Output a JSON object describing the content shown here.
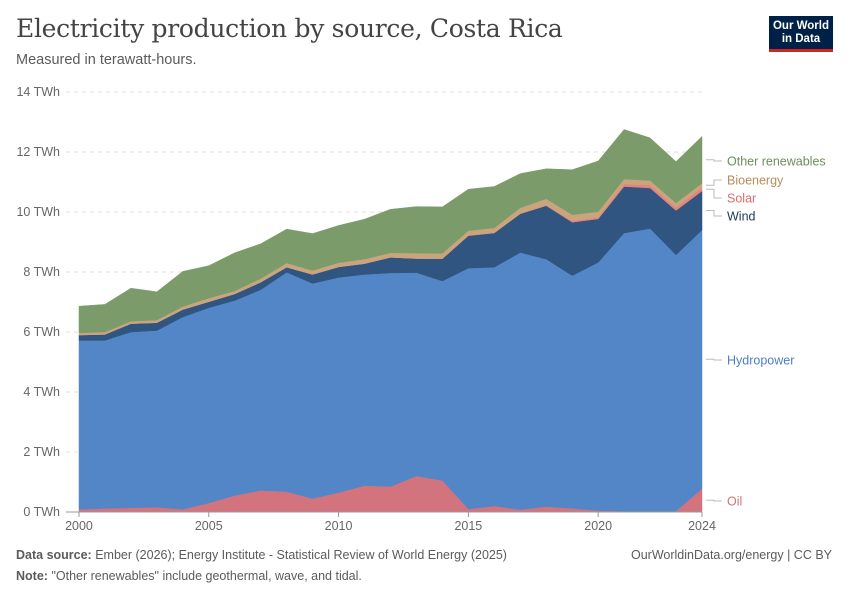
{
  "header": {
    "title": "Electricity production by source, Costa Rica",
    "subtitle": "Measured in terawatt-hours.",
    "logo_line1": "Our World",
    "logo_line2": "in Data"
  },
  "footer": {
    "source_label": "Data source:",
    "source_text": "Ember (2026); Energy Institute - Statistical Review of World Energy (2025)",
    "note_label": "Note:",
    "note_text": "\"Other renewables\" include geothermal, wave, and tidal.",
    "url": "OurWorldinData.org/energy | CC BY"
  },
  "chart_data": {
    "type": "area",
    "stacked": true,
    "title": "Electricity production by source, Costa Rica",
    "unit": "TWh",
    "ylim": [
      0,
      14
    ],
    "y_ticks": [
      0,
      2,
      4,
      6,
      8,
      10,
      12,
      14
    ],
    "y_tick_labels": [
      "0 TWh",
      "2 TWh",
      "4 TWh",
      "6 TWh",
      "8 TWh",
      "10 TWh",
      "12 TWh",
      "14 TWh"
    ],
    "x_ticks": [
      2000,
      2005,
      2010,
      2015,
      2020,
      2024
    ],
    "x_tick_labels": [
      "2000",
      "2005",
      "2010",
      "2015",
      "2020",
      "2024"
    ],
    "xlim": [
      1999.5,
      2024
    ],
    "grid": true,
    "legend_position": "right",
    "x": [
      2000,
      2001,
      2002,
      2003,
      2004,
      2005,
      2006,
      2007,
      2008,
      2009,
      2010,
      2011,
      2012,
      2013,
      2014,
      2015,
      2016,
      2017,
      2018,
      2019,
      2020,
      2021,
      2022,
      2023,
      2024
    ],
    "series": [
      {
        "name": "Oil",
        "color": "#d2737e",
        "values": [
          0.09,
          0.12,
          0.14,
          0.16,
          0.09,
          0.3,
          0.55,
          0.72,
          0.68,
          0.45,
          0.65,
          0.88,
          0.85,
          1.2,
          1.05,
          0.1,
          0.2,
          0.08,
          0.18,
          0.12,
          0.05,
          0.03,
          0.03,
          0.03,
          0.78
        ]
      },
      {
        "name": "Hydropower",
        "color": "#5386c6",
        "values": [
          5.63,
          5.6,
          5.86,
          5.89,
          6.41,
          6.51,
          6.5,
          6.69,
          7.31,
          7.17,
          7.17,
          7.04,
          7.12,
          6.78,
          6.65,
          8.03,
          7.96,
          8.57,
          8.25,
          7.76,
          8.27,
          9.27,
          9.42,
          8.54,
          8.62
        ]
      },
      {
        "name": "Wind",
        "color": "#2f5580",
        "values": [
          0.18,
          0.2,
          0.28,
          0.26,
          0.25,
          0.2,
          0.22,
          0.25,
          0.17,
          0.3,
          0.35,
          0.36,
          0.52,
          0.47,
          0.74,
          1.08,
          1.14,
          1.29,
          1.78,
          1.78,
          1.45,
          1.55,
          1.35,
          1.48,
          1.3
        ]
      },
      {
        "name": "Solar",
        "color": "#e48381",
        "values": [
          0,
          0,
          0,
          0,
          0,
          0,
          0,
          0,
          0,
          0,
          0,
          0,
          0,
          0,
          0.01,
          0.01,
          0.01,
          0.01,
          0.02,
          0.05,
          0.05,
          0.08,
          0.1,
          0.1,
          0.12
        ]
      },
      {
        "name": "Bioenergy",
        "color": "#c9a57e",
        "values": [
          0.07,
          0.08,
          0.08,
          0.09,
          0.1,
          0.12,
          0.1,
          0.12,
          0.14,
          0.13,
          0.14,
          0.15,
          0.15,
          0.18,
          0.17,
          0.16,
          0.16,
          0.19,
          0.21,
          0.2,
          0.19,
          0.17,
          0.15,
          0.15,
          0.14
        ]
      },
      {
        "name": "Other renewables",
        "color": "#7c9b6b",
        "values": [
          0.89,
          0.92,
          1.1,
          0.94,
          1.17,
          1.08,
          1.27,
          1.16,
          1.13,
          1.23,
          1.24,
          1.33,
          1.45,
          1.55,
          1.55,
          1.38,
          1.38,
          1.14,
          1.0,
          1.5,
          1.69,
          1.65,
          1.42,
          1.38,
          1.56
        ]
      }
    ],
    "legend_order": [
      "Other renewables",
      "Bioenergy",
      "Solar",
      "Wind",
      "Hydropower",
      "Oil"
    ],
    "legend_colors": {
      "Other renewables": "#6b8f59",
      "Bioenergy": "#b78e5c",
      "Solar": "#dc6b6e",
      "Wind": "#1c3c60",
      "Hydropower": "#4a7fc4",
      "Oil": "#d2737e"
    }
  }
}
